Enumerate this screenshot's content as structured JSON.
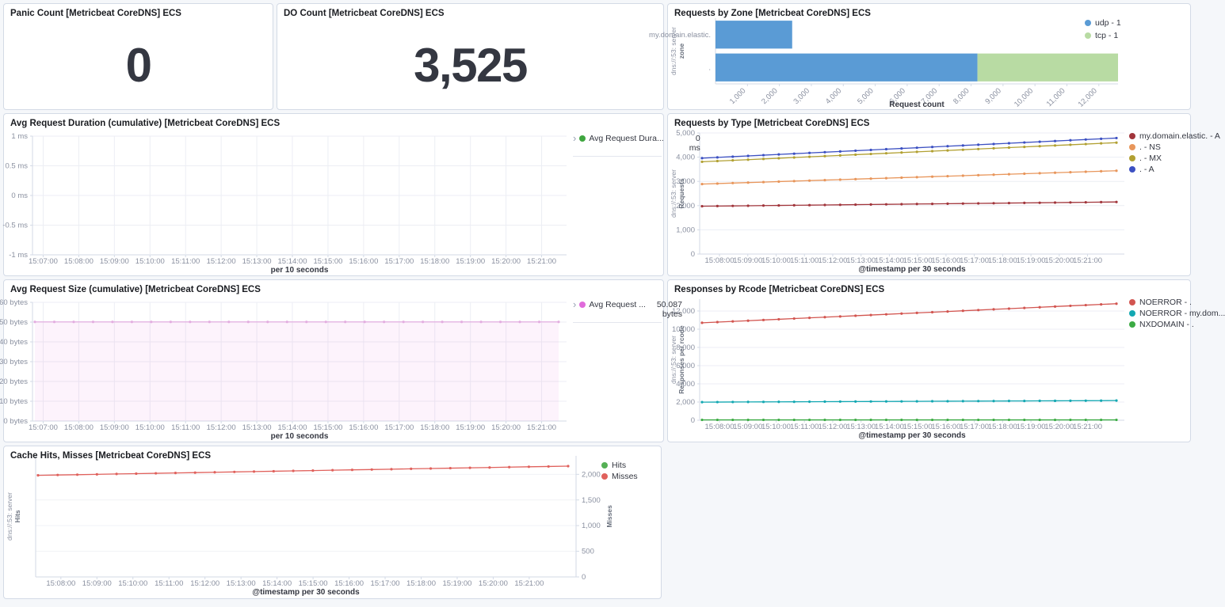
{
  "icons": {
    "chevron_right": "›"
  },
  "panels": {
    "panic": {
      "title": "Panic Count [Metricbeat CoreDNS] ECS",
      "value": "0"
    },
    "do_count": {
      "title": "DO Count [Metricbeat CoreDNS] ECS",
      "value": "3,525"
    },
    "zone": {
      "title": "Requests by Zone [Metricbeat CoreDNS] ECS"
    },
    "duration": {
      "title": "Avg Request Duration (cumulative) [Metricbeat CoreDNS] ECS",
      "legend": {
        "label": "Avg Request Dura...",
        "value": "0",
        "unit": "ms",
        "color": "#3fa63f"
      }
    },
    "type": {
      "title": "Requests by Type [Metricbeat CoreDNS] ECS"
    },
    "size": {
      "title": "Avg Request Size (cumulative) [Metricbeat CoreDNS] ECS",
      "legend": {
        "label": "Avg Request ...",
        "value": "50.087",
        "unit": "bytes",
        "color": "#e06bdb"
      }
    },
    "rcode": {
      "title": "Responses by Rcode [Metricbeat CoreDNS] ECS"
    },
    "cache": {
      "title": "Cache Hits, Misses [Metricbeat CoreDNS] ECS"
    }
  },
  "chart_data": [
    {
      "id": "zone",
      "type": "bar",
      "orientation": "horizontal",
      "title": "Requests by Zone [Metricbeat CoreDNS] ECS",
      "categories": [
        "my.domain.elastic.",
        "."
      ],
      "series": [
        {
          "name": "udp - 1",
          "color": "#5a9bd5",
          "values": [
            2400,
            8200
          ]
        },
        {
          "name": "tcp - 1",
          "color": "#b8dba3",
          "values": [
            0,
            4400
          ]
        }
      ],
      "xlabel": "Request count",
      "ylabel": {
        "line1": "dns://:53: server",
        "line2": "zone"
      },
      "xlim": [
        0,
        12600
      ],
      "x_ticks": [
        {
          "v": 1000,
          "label": "1,000"
        },
        {
          "v": 2000,
          "label": "2,000"
        },
        {
          "v": 3000,
          "label": "3,000"
        },
        {
          "v": 4000,
          "label": "4,000"
        },
        {
          "v": 5000,
          "label": "5,000"
        },
        {
          "v": 6000,
          "label": "6,000"
        },
        {
          "v": 7000,
          "label": "7,000"
        },
        {
          "v": 8000,
          "label": "8,000"
        },
        {
          "v": 9000,
          "label": "9,000"
        },
        {
          "v": 10000,
          "label": "10,000"
        },
        {
          "v": 11000,
          "label": "11,000"
        },
        {
          "v": 12000,
          "label": "12,000"
        }
      ],
      "show_series_legend": true,
      "legend_position": "top-right"
    },
    {
      "id": "duration",
      "type": "line",
      "title": "Avg Request Duration (cumulative) [Metricbeat CoreDNS] ECS",
      "ylim": [
        -1,
        1
      ],
      "y_ticks": [
        {
          "v": 1,
          "label": "1 ms"
        },
        {
          "v": 0.5,
          "label": "0.5 ms"
        },
        {
          "v": 0,
          "label": "0 ms"
        },
        {
          "v": -0.5,
          "label": "-0.5 ms"
        },
        {
          "v": -1,
          "label": "-1 ms"
        }
      ],
      "x_labels": [
        "15:07:00",
        "15:08:00",
        "15:09:00",
        "15:10:00",
        "15:11:00",
        "15:12:00",
        "15:13:00",
        "15:14:00",
        "15:15:00",
        "15:16:00",
        "15:17:00",
        "15:18:00",
        "15:19:00",
        "15:20:00",
        "15:21:00"
      ],
      "xlabel": "per 10 seconds",
      "grid_vertical": true,
      "series": [
        {
          "name": "Avg Request Dura...",
          "color": "#3fa63f",
          "display_value": "0 ms",
          "values": []
        }
      ],
      "show_series_legend": false
    },
    {
      "id": "type",
      "type": "line",
      "title": "Requests by Type [Metricbeat CoreDNS] ECS",
      "ylim": [
        0,
        5000
      ],
      "y_ticks": [
        {
          "v": 0,
          "label": "0"
        },
        {
          "v": 1000,
          "label": "1,000"
        },
        {
          "v": 2000,
          "label": "2,000"
        },
        {
          "v": 3000,
          "label": "3,000"
        },
        {
          "v": 4000,
          "label": "4,000"
        },
        {
          "v": 5000,
          "label": "5,000"
        }
      ],
      "x_labels": [
        "15:08:00",
        "15:09:00",
        "15:10:00",
        "15:11:00",
        "15:12:00",
        "15:13:00",
        "15:14:00",
        "15:15:00",
        "15:16:00",
        "15:17:00",
        "15:18:00",
        "15:19:00",
        "15:20:00",
        "15:21:00"
      ],
      "xlabel": "@timestamp per 30 seconds",
      "ylabel": {
        "line1": "dns://:53: server",
        "line2": "Requests"
      },
      "grid_vertical": false,
      "series": [
        {
          "name": "my.domain.elastic. - A",
          "color": "#a1353b",
          "values": [
            1975,
            1981,
            1988,
            1994,
            2001,
            2007,
            2014,
            2020,
            2027,
            2033,
            2040,
            2046,
            2053,
            2059,
            2066,
            2072,
            2079,
            2085,
            2092,
            2098,
            2105,
            2111,
            2118,
            2124,
            2131,
            2137,
            2144,
            2150
          ]
        },
        {
          "name": ". - NS",
          "color": "#e8965b",
          "values": [
            2890,
            2910,
            2931,
            2951,
            2971,
            2992,
            3012,
            3033,
            3053,
            3073,
            3094,
            3114,
            3134,
            3155,
            3175,
            3196,
            3216,
            3236,
            3257,
            3277,
            3297,
            3318,
            3338,
            3359,
            3379,
            3399,
            3420,
            3440
          ]
        },
        {
          "name": ". - MX",
          "color": "#b1a032",
          "values": [
            3810,
            3839,
            3869,
            3898,
            3927,
            3956,
            3986,
            4015,
            4044,
            4073,
            4103,
            4132,
            4161,
            4190,
            4220,
            4249,
            4278,
            4307,
            4337,
            4366,
            4395,
            4424,
            4454,
            4483,
            4512,
            4541,
            4571,
            4600
          ]
        },
        {
          "name": ". - A",
          "color": "#3c50c2",
          "values": [
            3960,
            3991,
            4021,
            4052,
            4083,
            4114,
            4144,
            4175,
            4206,
            4237,
            4267,
            4298,
            4329,
            4360,
            4390,
            4421,
            4452,
            4483,
            4513,
            4544,
            4575,
            4606,
            4636,
            4667,
            4698,
            4729,
            4759,
            4790
          ]
        }
      ],
      "show_series_legend": true,
      "legend_position": "right"
    },
    {
      "id": "size",
      "type": "area",
      "title": "Avg Request Size (cumulative) [Metricbeat CoreDNS] ECS",
      "ylim": [
        0,
        60
      ],
      "y_ticks": [
        {
          "v": 60,
          "label": "60 bytes"
        },
        {
          "v": 50,
          "label": "50 bytes"
        },
        {
          "v": 40,
          "label": "40 bytes"
        },
        {
          "v": 30,
          "label": "30 bytes"
        },
        {
          "v": 20,
          "label": "20 bytes"
        },
        {
          "v": 10,
          "label": "10 bytes"
        },
        {
          "v": 0,
          "label": "0 bytes"
        }
      ],
      "x_labels": [
        "15:07:00",
        "15:08:00",
        "15:09:00",
        "15:10:00",
        "15:11:00",
        "15:12:00",
        "15:13:00",
        "15:14:00",
        "15:15:00",
        "15:16:00",
        "15:17:00",
        "15:18:00",
        "15:19:00",
        "15:20:00",
        "15:21:00"
      ],
      "xlabel": "per 10 seconds",
      "grid_vertical": true,
      "series": [
        {
          "name": "Avg Request ...",
          "color": "#e3aee0",
          "area": true,
          "area_fill": "rgba(224,107,219,0.08)",
          "display_value": "50.087 bytes",
          "values": [
            50.087,
            50.087,
            50.087,
            50.087,
            50.087,
            50.087,
            50.087,
            50.087,
            50.087,
            50.087,
            50.087,
            50.087,
            50.087,
            50.087,
            50.087,
            50.087,
            50.087,
            50.087,
            50.087,
            50.087,
            50.087,
            50.087,
            50.087,
            50.087,
            50.087,
            50.087,
            50.087,
            50.087
          ]
        }
      ],
      "show_series_legend": false
    },
    {
      "id": "rcode",
      "type": "line",
      "title": "Responses by Rcode [Metricbeat CoreDNS] ECS",
      "ylim": [
        0,
        13300
      ],
      "y_ticks": [
        {
          "v": 0,
          "label": "0"
        },
        {
          "v": 2000,
          "label": "2,000"
        },
        {
          "v": 4000,
          "label": "4,000"
        },
        {
          "v": 6000,
          "label": "6,000"
        },
        {
          "v": 8000,
          "label": "8,000"
        },
        {
          "v": 10000,
          "label": "10,000"
        },
        {
          "v": 12000,
          "label": "12,000"
        }
      ],
      "x_labels": [
        "15:08:00",
        "15:09:00",
        "15:10:00",
        "15:11:00",
        "15:12:00",
        "15:13:00",
        "15:14:00",
        "15:15:00",
        "15:16:00",
        "15:17:00",
        "15:18:00",
        "15:19:00",
        "15:20:00",
        "15:21:00"
      ],
      "xlabel": "@timestamp per 30 seconds",
      "ylabel": {
        "line1": "dns://:53: server",
        "line2": "Responses per rcode"
      },
      "grid_vertical": false,
      "series": [
        {
          "name": "NOERROR - .",
          "color": "#d25550",
          "values": [
            10700,
            10778,
            10856,
            10933,
            11011,
            11089,
            11167,
            11244,
            11322,
            11400,
            11478,
            11556,
            11633,
            11711,
            11789,
            11867,
            11944,
            12022,
            12100,
            12178,
            12256,
            12333,
            12411,
            12489,
            12567,
            12644,
            12722,
            12800
          ]
        },
        {
          "name": "NOERROR - my.dom...",
          "color": "#13a8b2",
          "values": [
            1990,
            1996,
            2003,
            2009,
            2015,
            2021,
            2028,
            2034,
            2040,
            2047,
            2053,
            2059,
            2066,
            2072,
            2078,
            2084,
            2091,
            2097,
            2103,
            2110,
            2116,
            2122,
            2129,
            2135,
            2141,
            2147,
            2154,
            2160
          ]
        },
        {
          "name": "NXDOMAIN - .",
          "color": "#3cab44",
          "values": [
            40,
            40,
            40,
            40,
            40,
            40,
            40,
            40,
            40,
            40,
            40,
            40,
            40,
            40,
            40,
            40,
            40,
            40,
            40,
            40,
            40,
            40,
            40,
            40,
            40,
            40,
            40,
            40
          ]
        }
      ],
      "show_series_legend": true,
      "legend_position": "right"
    },
    {
      "id": "cache",
      "type": "line",
      "title": "Cache Hits, Misses [Metricbeat CoreDNS] ECS",
      "ylim": [
        0,
        2360
      ],
      "y_ticks": [],
      "right_axis": {
        "label": "Misses",
        "ticks": [
          {
            "v": 2000,
            "label": "2,000"
          },
          {
            "v": 1500,
            "label": "1,500"
          },
          {
            "v": 1000,
            "label": "1,000"
          },
          {
            "v": 500,
            "label": "500"
          },
          {
            "v": 0,
            "label": "0"
          }
        ]
      },
      "x_labels": [
        "15:08:00",
        "15:09:00",
        "15:10:00",
        "15:11:00",
        "15:12:00",
        "15:13:00",
        "15:14:00",
        "15:15:00",
        "15:16:00",
        "15:17:00",
        "15:18:00",
        "15:19:00",
        "15:20:00",
        "15:21:00"
      ],
      "xlabel": "@timestamp per 30 seconds",
      "ylabel": {
        "line1": "dns://:53: server",
        "line2": "Hits"
      },
      "grid_vertical": false,
      "series": [
        {
          "name": "Hits",
          "color": "#55b055",
          "values": []
        },
        {
          "name": "Misses",
          "color": "#e0615c",
          "values": [
            1980,
            1987,
            1993,
            2000,
            2007,
            2013,
            2020,
            2027,
            2033,
            2040,
            2047,
            2053,
            2060,
            2067,
            2073,
            2080,
            2087,
            2093,
            2100,
            2107,
            2113,
            2120,
            2127,
            2133,
            2140,
            2147,
            2153,
            2160
          ]
        }
      ],
      "show_series_legend": true,
      "legend_position": "top-right-outside"
    }
  ]
}
